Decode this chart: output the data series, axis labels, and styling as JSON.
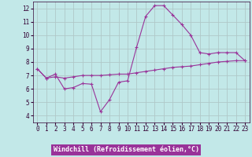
{
  "xlabel": "Windchill (Refroidissement éolien,°C)",
  "xlim": [
    -0.5,
    23.5
  ],
  "ylim": [
    3.5,
    12.5
  ],
  "yticks": [
    4,
    5,
    6,
    7,
    8,
    9,
    10,
    11,
    12
  ],
  "xticks": [
    0,
    1,
    2,
    3,
    4,
    5,
    6,
    7,
    8,
    9,
    10,
    11,
    12,
    13,
    14,
    15,
    16,
    17,
    18,
    19,
    20,
    21,
    22,
    23
  ],
  "background_color": "#c2e8e8",
  "grid_color": "#b0c8c8",
  "line_color": "#993399",
  "axis_bg": "#993399",
  "axis_fg": "#ffffff",
  "line1_x": [
    0,
    1,
    2,
    3,
    4,
    5,
    6,
    7,
    8,
    9,
    10,
    11,
    12,
    13,
    14,
    15,
    16,
    17,
    18,
    19,
    20,
    21,
    22,
    23
  ],
  "line1_y": [
    7.5,
    6.8,
    7.1,
    6.0,
    6.1,
    6.4,
    6.35,
    4.3,
    5.2,
    6.5,
    6.6,
    9.1,
    11.4,
    12.2,
    12.2,
    11.5,
    10.8,
    10.0,
    8.7,
    8.6,
    8.7,
    8.7,
    8.7,
    8.1
  ],
  "line2_x": [
    0,
    1,
    2,
    3,
    4,
    5,
    6,
    7,
    8,
    9,
    10,
    11,
    12,
    13,
    14,
    15,
    16,
    17,
    18,
    19,
    20,
    21,
    22,
    23
  ],
  "line2_y": [
    7.5,
    6.8,
    6.9,
    6.8,
    6.9,
    7.0,
    7.0,
    7.0,
    7.05,
    7.1,
    7.1,
    7.2,
    7.3,
    7.4,
    7.5,
    7.6,
    7.65,
    7.7,
    7.8,
    7.9,
    8.0,
    8.05,
    8.1,
    8.1
  ]
}
